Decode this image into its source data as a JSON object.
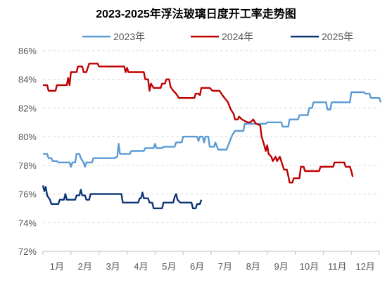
{
  "chart_data": {
    "type": "line",
    "title": "2023-2025年浮法玻璃日度开工率走势图",
    "xlabel": "",
    "ylabel": "",
    "categories": [
      "1月",
      "2月",
      "3月",
      "4月",
      "5月",
      "6月",
      "7月",
      "8月",
      "9月",
      "10月",
      "11月",
      "12月"
    ],
    "x_range": [
      0,
      12
    ],
    "ylim": [
      72,
      86
    ],
    "yticks": [
      "72%",
      "74%",
      "76%",
      "78%",
      "80%",
      "82%",
      "84%",
      "86%"
    ],
    "ytick_values": [
      72,
      74,
      76,
      78,
      80,
      82,
      84,
      86
    ],
    "grid": "horizontal dashed",
    "legend_position": "top",
    "series": [
      {
        "name": "2023年",
        "color": "#5b9bd5",
        "points": [
          [
            0.0,
            78.8
          ],
          [
            0.15,
            78.8
          ],
          [
            0.2,
            78.5
          ],
          [
            0.3,
            78.5
          ],
          [
            0.35,
            78.3
          ],
          [
            0.5,
            78.3
          ],
          [
            0.55,
            78.2
          ],
          [
            0.95,
            78.2
          ],
          [
            1.0,
            77.9
          ],
          [
            1.05,
            78.2
          ],
          [
            1.15,
            78.2
          ],
          [
            1.2,
            78.8
          ],
          [
            1.3,
            78.8
          ],
          [
            1.35,
            78.5
          ],
          [
            1.45,
            78.2
          ],
          [
            1.5,
            77.9
          ],
          [
            1.55,
            78.2
          ],
          [
            1.75,
            78.2
          ],
          [
            1.8,
            78.5
          ],
          [
            2.55,
            78.5
          ],
          [
            2.65,
            78.6
          ],
          [
            2.7,
            79.5
          ],
          [
            2.75,
            78.8
          ],
          [
            3.1,
            78.8
          ],
          [
            3.15,
            79.0
          ],
          [
            3.6,
            79.0
          ],
          [
            3.65,
            79.2
          ],
          [
            3.95,
            79.2
          ],
          [
            4.0,
            79.5
          ],
          [
            4.05,
            79.2
          ],
          [
            4.25,
            79.2
          ],
          [
            4.3,
            79.3
          ],
          [
            4.7,
            79.3
          ],
          [
            4.75,
            79.6
          ],
          [
            4.95,
            79.6
          ],
          [
            5.0,
            80.0
          ],
          [
            5.5,
            80.0
          ],
          [
            5.55,
            79.7
          ],
          [
            5.6,
            80.0
          ],
          [
            5.7,
            80.0
          ],
          [
            5.75,
            79.6
          ],
          [
            5.8,
            80.0
          ],
          [
            5.9,
            80.0
          ],
          [
            5.95,
            79.3
          ],
          [
            6.1,
            79.3
          ],
          [
            6.15,
            79.6
          ],
          [
            6.25,
            79.1
          ],
          [
            6.55,
            79.1
          ],
          [
            6.65,
            79.6
          ],
          [
            6.75,
            80.1
          ],
          [
            6.85,
            80.4
          ],
          [
            7.15,
            80.4
          ],
          [
            7.2,
            80.9
          ],
          [
            7.95,
            80.9
          ],
          [
            8.0,
            81.0
          ],
          [
            8.5,
            81.0
          ],
          [
            8.55,
            80.7
          ],
          [
            8.75,
            80.7
          ],
          [
            8.8,
            81.2
          ],
          [
            9.1,
            81.2
          ],
          [
            9.15,
            81.5
          ],
          [
            9.45,
            81.5
          ],
          [
            9.5,
            82.0
          ],
          [
            9.6,
            82.0
          ],
          [
            9.65,
            82.4
          ],
          [
            10.1,
            82.4
          ],
          [
            10.15,
            81.9
          ],
          [
            10.25,
            81.9
          ],
          [
            10.3,
            82.4
          ],
          [
            10.95,
            82.4
          ],
          [
            11.0,
            83.1
          ],
          [
            11.45,
            83.1
          ],
          [
            11.5,
            83.0
          ],
          [
            11.65,
            83.0
          ],
          [
            11.7,
            82.7
          ],
          [
            12.0,
            82.7
          ],
          [
            12.05,
            82.4
          ]
        ]
      },
      {
        "name": "2024年",
        "color": "#c00000",
        "points": [
          [
            0.0,
            83.6
          ],
          [
            0.15,
            83.6
          ],
          [
            0.2,
            83.2
          ],
          [
            0.45,
            83.2
          ],
          [
            0.5,
            83.6
          ],
          [
            0.85,
            83.6
          ],
          [
            0.9,
            84.1
          ],
          [
            0.95,
            83.6
          ],
          [
            1.0,
            84.5
          ],
          [
            1.2,
            84.5
          ],
          [
            1.25,
            84.9
          ],
          [
            1.4,
            84.9
          ],
          [
            1.45,
            84.5
          ],
          [
            1.55,
            84.5
          ],
          [
            1.6,
            84.8
          ],
          [
            1.65,
            85.1
          ],
          [
            1.95,
            85.1
          ],
          [
            2.0,
            84.9
          ],
          [
            2.9,
            84.9
          ],
          [
            2.95,
            84.5
          ],
          [
            3.0,
            84.8
          ],
          [
            3.05,
            84.5
          ],
          [
            3.6,
            84.5
          ],
          [
            3.65,
            84.0
          ],
          [
            3.75,
            84.0
          ],
          [
            3.8,
            83.2
          ],
          [
            3.85,
            83.7
          ],
          [
            3.95,
            83.4
          ],
          [
            4.2,
            83.4
          ],
          [
            4.25,
            83.7
          ],
          [
            4.35,
            83.7
          ],
          [
            4.4,
            84.0
          ],
          [
            4.5,
            84.0
          ],
          [
            4.55,
            83.5
          ],
          [
            4.65,
            83.2
          ],
          [
            4.75,
            83.0
          ],
          [
            4.85,
            82.7
          ],
          [
            5.4,
            82.7
          ],
          [
            5.45,
            83.0
          ],
          [
            5.55,
            83.0
          ],
          [
            5.6,
            82.9
          ],
          [
            5.65,
            83.4
          ],
          [
            5.95,
            83.4
          ],
          [
            6.05,
            83.2
          ],
          [
            6.3,
            83.2
          ],
          [
            6.4,
            82.9
          ],
          [
            6.6,
            82.4
          ],
          [
            6.7,
            81.9
          ],
          [
            6.8,
            81.6
          ],
          [
            6.85,
            81.2
          ],
          [
            6.95,
            81.2
          ],
          [
            7.0,
            81.4
          ],
          [
            7.1,
            81.2
          ],
          [
            7.3,
            81.0
          ],
          [
            7.4,
            81.0
          ],
          [
            7.5,
            81.2
          ],
          [
            7.6,
            80.9
          ],
          [
            7.75,
            80.8
          ],
          [
            7.8,
            80.0
          ],
          [
            7.85,
            79.7
          ],
          [
            7.95,
            79.0
          ],
          [
            8.0,
            79.4
          ],
          [
            8.05,
            78.8
          ],
          [
            8.15,
            78.6
          ],
          [
            8.2,
            78.3
          ],
          [
            8.3,
            78.6
          ],
          [
            8.35,
            78.3
          ],
          [
            8.45,
            78.6
          ],
          [
            8.5,
            78.3
          ],
          [
            8.55,
            78.0
          ],
          [
            8.6,
            77.7
          ],
          [
            8.7,
            77.7
          ],
          [
            8.75,
            77.3
          ],
          [
            8.8,
            76.8
          ],
          [
            8.9,
            76.8
          ],
          [
            8.95,
            77.1
          ],
          [
            9.15,
            77.1
          ],
          [
            9.2,
            77.9
          ],
          [
            9.3,
            77.9
          ],
          [
            9.35,
            77.6
          ],
          [
            9.85,
            77.6
          ],
          [
            9.9,
            77.9
          ],
          [
            10.35,
            77.9
          ],
          [
            10.4,
            78.2
          ],
          [
            10.75,
            78.2
          ],
          [
            10.8,
            77.9
          ],
          [
            10.95,
            77.9
          ],
          [
            11.0,
            77.6
          ],
          [
            11.05,
            77.2
          ]
        ]
      },
      {
        "name": "2025年",
        "color": "#0d3677",
        "points": [
          [
            0.0,
            76.6
          ],
          [
            0.05,
            76.2
          ],
          [
            0.1,
            76.5
          ],
          [
            0.15,
            75.9
          ],
          [
            0.25,
            75.6
          ],
          [
            0.3,
            75.3
          ],
          [
            0.55,
            75.3
          ],
          [
            0.6,
            75.6
          ],
          [
            0.75,
            75.6
          ],
          [
            0.8,
            76.0
          ],
          [
            0.85,
            75.6
          ],
          [
            1.15,
            75.6
          ],
          [
            1.2,
            75.9
          ],
          [
            1.3,
            75.9
          ],
          [
            1.35,
            76.3
          ],
          [
            1.4,
            75.9
          ],
          [
            1.5,
            75.9
          ],
          [
            1.55,
            75.6
          ],
          [
            1.65,
            75.6
          ],
          [
            1.7,
            76.0
          ],
          [
            2.8,
            76.0
          ],
          [
            2.85,
            75.4
          ],
          [
            3.4,
            75.4
          ],
          [
            3.45,
            75.7
          ],
          [
            3.5,
            75.7
          ],
          [
            3.55,
            76.1
          ],
          [
            3.6,
            75.7
          ],
          [
            3.75,
            75.7
          ],
          [
            3.8,
            75.4
          ],
          [
            3.9,
            75.4
          ],
          [
            3.95,
            75.0
          ],
          [
            4.25,
            75.0
          ],
          [
            4.3,
            75.4
          ],
          [
            4.65,
            75.4
          ],
          [
            4.7,
            75.8
          ],
          [
            4.75,
            76.0
          ],
          [
            4.8,
            75.6
          ],
          [
            4.9,
            75.4
          ],
          [
            5.3,
            75.4
          ],
          [
            5.35,
            75.0
          ],
          [
            5.45,
            75.0
          ],
          [
            5.5,
            75.3
          ],
          [
            5.6,
            75.3
          ],
          [
            5.65,
            75.6
          ]
        ]
      }
    ]
  }
}
